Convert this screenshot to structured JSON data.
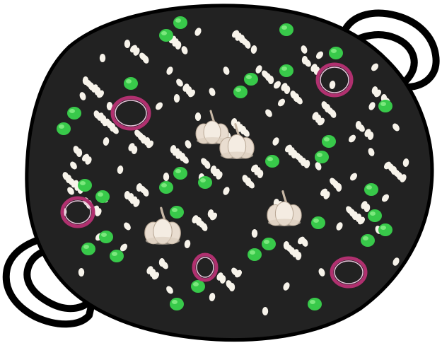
{
  "scene": {
    "pan_color": "#222222",
    "outline_color": "#000000",
    "rice_color": "#f7f3ea",
    "pea_color": "#38c94a",
    "pea_highlight": "#8cf08a",
    "onion_color": "#b0306f",
    "garlic_color": "#e9ddd0",
    "items": {
      "pan": "paella-pan",
      "handles": [
        "left-handle",
        "right-handle"
      ],
      "ingredients": [
        "rice",
        "peas",
        "red-onion-rings",
        "garlic-bulbs"
      ]
    }
  }
}
